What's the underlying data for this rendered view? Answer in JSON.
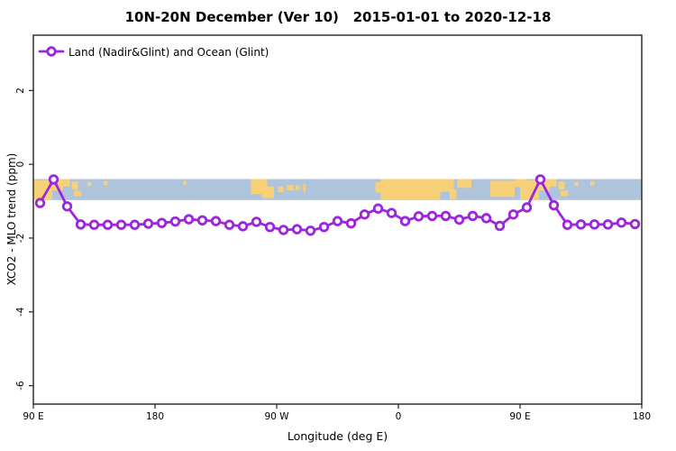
{
  "chart_data": {
    "type": "line",
    "title": "10N-20N December (Ver 10)   2015-01-01 to 2020-12-18",
    "xlabel": "Longitude (deg E)",
    "ylabel": "XCO2 - MLO trend (ppm)",
    "xlim": [
      90,
      540
    ],
    "ylim": [
      -6.5,
      3.5
    ],
    "grid": false,
    "x_ticks": {
      "values": [
        90,
        180,
        270,
        360,
        450,
        540
      ],
      "labels": [
        "90 E",
        "180",
        "90 W",
        "0",
        "90 E",
        "180"
      ]
    },
    "y_ticks": {
      "values": [
        2,
        0,
        -2,
        -4,
        -6
      ],
      "labels": [
        "2",
        "0",
        "-2",
        "-4",
        "-6"
      ]
    },
    "legend": {
      "position": "top-left",
      "entries": [
        {
          "label": "Land (Nadir&Glint) and Ocean (Glint)",
          "color": "#9B26DB",
          "marker": "open-circle"
        }
      ]
    },
    "series": [
      {
        "name": "Land (Nadir&Glint) and Ocean (Glint)",
        "x": [
          95,
          105,
          115,
          125,
          135,
          145,
          155,
          165,
          175,
          185,
          195,
          205,
          215,
          225,
          235,
          245,
          255,
          265,
          275,
          285,
          295,
          305,
          315,
          325,
          335,
          345,
          355,
          365,
          375,
          385,
          395,
          405,
          415,
          425,
          435,
          445,
          455,
          465,
          475,
          485,
          495,
          505,
          515,
          525,
          535
        ],
        "y": [
          -1.05,
          -0.41,
          -1.14,
          -1.63,
          -1.64,
          -1.64,
          -1.64,
          -1.64,
          -1.61,
          -1.59,
          -1.55,
          -1.49,
          -1.52,
          -1.54,
          -1.64,
          -1.68,
          -1.56,
          -1.7,
          -1.78,
          -1.76,
          -1.8,
          -1.7,
          -1.54,
          -1.6,
          -1.36,
          -1.2,
          -1.32,
          -1.54,
          -1.41,
          -1.4,
          -1.4,
          -1.5,
          -1.4,
          -1.46,
          -1.67,
          -1.36,
          -1.17,
          -0.41,
          -1.11,
          -1.64,
          -1.63,
          -1.63,
          -1.63,
          -1.58,
          -1.62
        ]
      }
    ],
    "map_band": {
      "description": "world map strip of latitude band 10N-20N drawn behind curve",
      "y_top": -0.4,
      "y_bottom": -0.97,
      "ocean_color": "#AEC3DC",
      "land_color": "#F8D077",
      "land_patches": [
        [
          90,
          104,
          0.05,
          1.0
        ],
        [
          104,
          112,
          0.0,
          0.55
        ],
        [
          112,
          117,
          0.0,
          0.35
        ],
        [
          118.5,
          123,
          0.12,
          0.5
        ],
        [
          120,
          125.5,
          0.55,
          0.8
        ],
        [
          130,
          133,
          0.15,
          0.32
        ],
        [
          142,
          145,
          0.1,
          0.3
        ],
        [
          201,
          203,
          0.08,
          0.28
        ],
        [
          251,
          263,
          0.0,
          0.72
        ],
        [
          259,
          268,
          0.35,
          0.9
        ],
        [
          271,
          275,
          0.35,
          0.62
        ],
        [
          277.5,
          282.5,
          0.28,
          0.55
        ],
        [
          284,
          287,
          0.3,
          0.52
        ],
        [
          289.5,
          291.5,
          0.25,
          0.6
        ],
        [
          343,
          349,
          0.15,
          0.65
        ],
        [
          347,
          391,
          0.0,
          1.0
        ],
        [
          391,
          401,
          0.0,
          0.6
        ],
        [
          398,
          403,
          0.5,
          0.95
        ],
        [
          403.5,
          414,
          0.0,
          0.42
        ],
        [
          428,
          446,
          0.08,
          0.85
        ],
        [
          446,
          454,
          0.0,
          0.38
        ],
        [
          450,
          464,
          0.05,
          1.0
        ],
        [
          464,
          472,
          0.0,
          0.55
        ],
        [
          472,
          477,
          0.0,
          0.35
        ],
        [
          478.5,
          483,
          0.12,
          0.5
        ],
        [
          480,
          485.5,
          0.55,
          0.8
        ],
        [
          490,
          493,
          0.15,
          0.32
        ],
        [
          502,
          505,
          0.1,
          0.3
        ]
      ]
    },
    "colors": {
      "line": "#9B26DB",
      "marker_fill": "#FFFFFF",
      "axis": "#222222",
      "background": "#FFFFFF"
    }
  }
}
